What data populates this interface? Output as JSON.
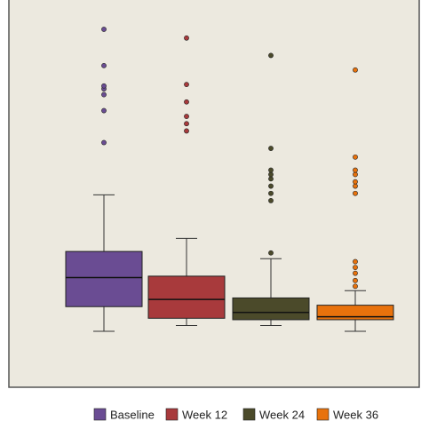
{
  "colors": {
    "panel_bg": "#ece9df",
    "panel_border": "#555555",
    "whisker": "#333333",
    "median": "#111111"
  },
  "chart_data": {
    "type": "boxplot",
    "title": "",
    "xlabel": "",
    "ylabel": "",
    "ylim": [
      0,
      100
    ],
    "axis_ticks_visible": false,
    "grid": false,
    "legend_position": "bottom",
    "series": [
      {
        "name": "Baseline",
        "color": "#6a4c93",
        "box": {
          "whisker_low": 11,
          "q1": 19.5,
          "median": 29.5,
          "q3": 38.5,
          "whisker_high": 58
        },
        "outliers": [
          76,
          87,
          92.5,
          94.5,
          95.5,
          102.5,
          115
        ]
      },
      {
        "name": "Week 12",
        "color": "#a83a3c",
        "box": {
          "whisker_low": 13,
          "q1": 15.5,
          "median": 22,
          "q3": 30,
          "whisker_high": 43
        },
        "outliers": [
          80,
          82.5,
          85,
          90,
          96,
          112
        ]
      },
      {
        "name": "Week 24",
        "color": "#4b4a2a",
        "box": {
          "whisker_low": 13,
          "q1": 15,
          "median": 17.5,
          "q3": 22.5,
          "whisker_high": 36
        },
        "outliers": [
          38,
          56,
          58.5,
          61,
          63.5,
          65,
          66.5,
          74,
          106
        ]
      },
      {
        "name": "Week 36",
        "color": "#e8720c",
        "box": {
          "whisker_low": 11,
          "q1": 15,
          "median": 16,
          "q3": 20,
          "whisker_high": 25
        },
        "outliers": [
          26.5,
          28.5,
          31,
          33,
          35,
          58.5,
          61,
          62.5,
          65,
          66.5,
          71,
          101
        ]
      }
    ]
  }
}
